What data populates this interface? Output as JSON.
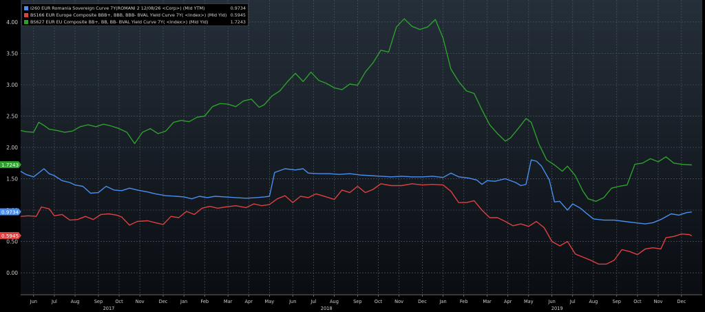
{
  "chart_data": {
    "type": "line",
    "title": "",
    "xlabel": "",
    "ylabel": "",
    "ylim": [
      -0.35,
      4.35
    ],
    "yticks": [
      "0.00",
      "0.50",
      "1.00",
      "1.50",
      "2.00",
      "2.50",
      "3.00",
      "3.50",
      "4.00"
    ],
    "xlim": [
      2017.37,
      2020.0
    ],
    "month_ticks": [
      {
        "label": "Jun",
        "x": 2017.42
      },
      {
        "label": "Jul",
        "x": 2017.5
      },
      {
        "label": "Aug",
        "x": 2017.58
      },
      {
        "label": "Sep",
        "x": 2017.67
      },
      {
        "label": "Oct",
        "x": 2017.75
      },
      {
        "label": "Nov",
        "x": 2017.83
      },
      {
        "label": "Dec",
        "x": 2017.92
      },
      {
        "label": "Jan",
        "x": 2018.0
      },
      {
        "label": "Feb",
        "x": 2018.08
      },
      {
        "label": "Mar",
        "x": 2018.17
      },
      {
        "label": "Apr",
        "x": 2018.25
      },
      {
        "label": "May",
        "x": 2018.33
      },
      {
        "label": "Jun",
        "x": 2018.42
      },
      {
        "label": "Jul",
        "x": 2018.5
      },
      {
        "label": "Aug",
        "x": 2018.58
      },
      {
        "label": "Sep",
        "x": 2018.67
      },
      {
        "label": "Oct",
        "x": 2018.75
      },
      {
        "label": "Nov",
        "x": 2018.83
      },
      {
        "label": "Dec",
        "x": 2018.92
      },
      {
        "label": "Jan",
        "x": 2019.0
      },
      {
        "label": "Feb",
        "x": 2019.08
      },
      {
        "label": "Mar",
        "x": 2019.17
      },
      {
        "label": "Apr",
        "x": 2019.25
      },
      {
        "label": "May",
        "x": 2019.33
      },
      {
        "label": "Jun",
        "x": 2019.42
      },
      {
        "label": "Jul",
        "x": 2019.5
      },
      {
        "label": "Aug",
        "x": 2019.58
      },
      {
        "label": "Sep",
        "x": 2019.67
      },
      {
        "label": "Oct",
        "x": 2019.75
      },
      {
        "label": "Nov",
        "x": 2019.83
      },
      {
        "label": "Dec",
        "x": 2019.92
      }
    ],
    "year_ticks": [
      {
        "label": "2017",
        "x": 2017.71
      },
      {
        "label": "2018",
        "x": 2018.55
      },
      {
        "label": "2019",
        "x": 2019.44
      }
    ],
    "grid": true,
    "legend_position": "top-left",
    "series": [
      {
        "name": "I260 EUR Romania Sovereign Curve 7Y(ROMANI 2 12/08/26 <Corp>) (Mid YTM)",
        "last": "0.9734",
        "color": "#4a8ff0",
        "points": [
          [
            2017.37,
            1.62
          ],
          [
            2017.39,
            1.57
          ],
          [
            2017.42,
            1.53
          ],
          [
            2017.46,
            1.66
          ],
          [
            2017.48,
            1.58
          ],
          [
            2017.5,
            1.55
          ],
          [
            2017.53,
            1.47
          ],
          [
            2017.56,
            1.44
          ],
          [
            2017.58,
            1.4
          ],
          [
            2017.61,
            1.38
          ],
          [
            2017.64,
            1.27
          ],
          [
            2017.67,
            1.28
          ],
          [
            2017.7,
            1.38
          ],
          [
            2017.73,
            1.32
          ],
          [
            2017.76,
            1.31
          ],
          [
            2017.79,
            1.35
          ],
          [
            2017.82,
            1.32
          ],
          [
            2017.86,
            1.29
          ],
          [
            2017.89,
            1.26
          ],
          [
            2017.93,
            1.23
          ],
          [
            2017.97,
            1.22
          ],
          [
            2018.0,
            1.21
          ],
          [
            2018.03,
            1.18
          ],
          [
            2018.06,
            1.22
          ],
          [
            2018.09,
            1.2
          ],
          [
            2018.12,
            1.22
          ],
          [
            2018.16,
            1.21
          ],
          [
            2018.2,
            1.2
          ],
          [
            2018.24,
            1.19
          ],
          [
            2018.28,
            1.2
          ],
          [
            2018.31,
            1.21
          ],
          [
            2018.33,
            1.22
          ],
          [
            2018.35,
            1.6
          ],
          [
            2018.39,
            1.66
          ],
          [
            2018.43,
            1.64
          ],
          [
            2018.46,
            1.66
          ],
          [
            2018.48,
            1.59
          ],
          [
            2018.52,
            1.58
          ],
          [
            2018.56,
            1.58
          ],
          [
            2018.6,
            1.57
          ],
          [
            2018.64,
            1.58
          ],
          [
            2018.68,
            1.56
          ],
          [
            2018.72,
            1.55
          ],
          [
            2018.76,
            1.54
          ],
          [
            2018.8,
            1.53
          ],
          [
            2018.84,
            1.54
          ],
          [
            2018.88,
            1.53
          ],
          [
            2018.92,
            1.53
          ],
          [
            2018.96,
            1.54
          ],
          [
            2019.0,
            1.52
          ],
          [
            2019.03,
            1.59
          ],
          [
            2019.06,
            1.53
          ],
          [
            2019.1,
            1.51
          ],
          [
            2019.13,
            1.48
          ],
          [
            2019.15,
            1.41
          ],
          [
            2019.17,
            1.47
          ],
          [
            2019.2,
            1.46
          ],
          [
            2019.24,
            1.5
          ],
          [
            2019.28,
            1.44
          ],
          [
            2019.3,
            1.39
          ],
          [
            2019.32,
            1.41
          ],
          [
            2019.34,
            1.8
          ],
          [
            2019.36,
            1.78
          ],
          [
            2019.38,
            1.7
          ],
          [
            2019.41,
            1.48
          ],
          [
            2019.43,
            1.13
          ],
          [
            2019.45,
            1.14
          ],
          [
            2019.48,
            1.0
          ],
          [
            2019.5,
            1.1
          ],
          [
            2019.53,
            1.03
          ],
          [
            2019.55,
            0.96
          ],
          [
            2019.58,
            0.86
          ],
          [
            2019.62,
            0.84
          ],
          [
            2019.66,
            0.84
          ],
          [
            2019.7,
            0.82
          ],
          [
            2019.74,
            0.8
          ],
          [
            2019.78,
            0.78
          ],
          [
            2019.81,
            0.8
          ],
          [
            2019.84,
            0.85
          ],
          [
            2019.88,
            0.94
          ],
          [
            2019.91,
            0.92
          ],
          [
            2019.94,
            0.96
          ],
          [
            2019.96,
            0.97
          ]
        ]
      },
      {
        "name": "BS166 EUR Europe Composite BBB+, BBB, BBB- BVAL Yield Curve 7Y( <Index>) (Mid Yld)",
        "last": "0.5945",
        "color": "#e04040",
        "points": [
          [
            2017.37,
            0.9
          ],
          [
            2017.4,
            0.91
          ],
          [
            2017.43,
            0.9
          ],
          [
            2017.45,
            1.05
          ],
          [
            2017.48,
            1.02
          ],
          [
            2017.5,
            0.91
          ],
          [
            2017.53,
            0.93
          ],
          [
            2017.56,
            0.84
          ],
          [
            2017.59,
            0.85
          ],
          [
            2017.62,
            0.9
          ],
          [
            2017.65,
            0.85
          ],
          [
            2017.68,
            0.93
          ],
          [
            2017.71,
            0.94
          ],
          [
            2017.74,
            0.92
          ],
          [
            2017.76,
            0.89
          ],
          [
            2017.79,
            0.76
          ],
          [
            2017.82,
            0.82
          ],
          [
            2017.86,
            0.83
          ],
          [
            2017.89,
            0.8
          ],
          [
            2017.92,
            0.77
          ],
          [
            2017.95,
            0.9
          ],
          [
            2017.98,
            0.88
          ],
          [
            2018.01,
            0.98
          ],
          [
            2018.04,
            0.93
          ],
          [
            2018.07,
            1.03
          ],
          [
            2018.1,
            1.06
          ],
          [
            2018.13,
            1.03
          ],
          [
            2018.16,
            1.05
          ],
          [
            2018.2,
            1.07
          ],
          [
            2018.24,
            1.04
          ],
          [
            2018.27,
            1.1
          ],
          [
            2018.3,
            1.07
          ],
          [
            2018.33,
            1.09
          ],
          [
            2018.36,
            1.18
          ],
          [
            2018.39,
            1.23
          ],
          [
            2018.42,
            1.12
          ],
          [
            2018.45,
            1.22
          ],
          [
            2018.48,
            1.2
          ],
          [
            2018.51,
            1.26
          ],
          [
            2018.55,
            1.21
          ],
          [
            2018.58,
            1.17
          ],
          [
            2018.61,
            1.32
          ],
          [
            2018.64,
            1.28
          ],
          [
            2018.67,
            1.38
          ],
          [
            2018.7,
            1.28
          ],
          [
            2018.73,
            1.33
          ],
          [
            2018.76,
            1.42
          ],
          [
            2018.8,
            1.39
          ],
          [
            2018.84,
            1.39
          ],
          [
            2018.88,
            1.42
          ],
          [
            2018.92,
            1.4
          ],
          [
            2018.96,
            1.41
          ],
          [
            2019.0,
            1.4
          ],
          [
            2019.03,
            1.3
          ],
          [
            2019.06,
            1.12
          ],
          [
            2019.09,
            1.12
          ],
          [
            2019.12,
            1.15
          ],
          [
            2019.15,
            1.0
          ],
          [
            2019.18,
            0.88
          ],
          [
            2019.21,
            0.88
          ],
          [
            2019.24,
            0.82
          ],
          [
            2019.27,
            0.75
          ],
          [
            2019.3,
            0.78
          ],
          [
            2019.33,
            0.74
          ],
          [
            2019.36,
            0.82
          ],
          [
            2019.39,
            0.72
          ],
          [
            2019.42,
            0.5
          ],
          [
            2019.45,
            0.43
          ],
          [
            2019.48,
            0.5
          ],
          [
            2019.51,
            0.3
          ],
          [
            2019.54,
            0.25
          ],
          [
            2019.57,
            0.2
          ],
          [
            2019.6,
            0.14
          ],
          [
            2019.63,
            0.14
          ],
          [
            2019.66,
            0.2
          ],
          [
            2019.69,
            0.37
          ],
          [
            2019.72,
            0.34
          ],
          [
            2019.75,
            0.29
          ],
          [
            2019.78,
            0.38
          ],
          [
            2019.81,
            0.4
          ],
          [
            2019.84,
            0.38
          ],
          [
            2019.86,
            0.56
          ],
          [
            2019.89,
            0.58
          ],
          [
            2019.92,
            0.62
          ],
          [
            2019.95,
            0.61
          ],
          [
            2019.96,
            0.59
          ]
        ]
      },
      {
        "name": "BS627 EUR EU Composite BB+, BB, BB- BVAL Yield Curve 7Y( <Index>) (Mid Yld)",
        "last": "1.7243",
        "color": "#2ea02e",
        "points": [
          [
            2017.37,
            2.27
          ],
          [
            2017.39,
            2.25
          ],
          [
            2017.42,
            2.24
          ],
          [
            2017.44,
            2.4
          ],
          [
            2017.46,
            2.35
          ],
          [
            2017.48,
            2.29
          ],
          [
            2017.51,
            2.27
          ],
          [
            2017.54,
            2.24
          ],
          [
            2017.57,
            2.26
          ],
          [
            2017.6,
            2.33
          ],
          [
            2017.63,
            2.36
          ],
          [
            2017.66,
            2.33
          ],
          [
            2017.69,
            2.37
          ],
          [
            2017.72,
            2.34
          ],
          [
            2017.75,
            2.3
          ],
          [
            2017.78,
            2.24
          ],
          [
            2017.81,
            2.06
          ],
          [
            2017.84,
            2.24
          ],
          [
            2017.87,
            2.3
          ],
          [
            2017.9,
            2.22
          ],
          [
            2017.93,
            2.26
          ],
          [
            2017.96,
            2.4
          ],
          [
            2017.99,
            2.43
          ],
          [
            2018.02,
            2.41
          ],
          [
            2018.05,
            2.48
          ],
          [
            2018.08,
            2.5
          ],
          [
            2018.11,
            2.65
          ],
          [
            2018.14,
            2.7
          ],
          [
            2018.17,
            2.69
          ],
          [
            2018.2,
            2.65
          ],
          [
            2018.23,
            2.74
          ],
          [
            2018.26,
            2.77
          ],
          [
            2018.29,
            2.64
          ],
          [
            2018.31,
            2.68
          ],
          [
            2018.34,
            2.82
          ],
          [
            2018.37,
            2.9
          ],
          [
            2018.4,
            3.05
          ],
          [
            2018.43,
            3.18
          ],
          [
            2018.46,
            3.05
          ],
          [
            2018.49,
            3.2
          ],
          [
            2018.52,
            3.07
          ],
          [
            2018.55,
            3.02
          ],
          [
            2018.58,
            2.95
          ],
          [
            2018.61,
            2.92
          ],
          [
            2018.64,
            3.01
          ],
          [
            2018.67,
            2.99
          ],
          [
            2018.7,
            3.2
          ],
          [
            2018.73,
            3.35
          ],
          [
            2018.76,
            3.55
          ],
          [
            2018.79,
            3.52
          ],
          [
            2018.82,
            3.92
          ],
          [
            2018.85,
            4.05
          ],
          [
            2018.88,
            3.93
          ],
          [
            2018.91,
            3.88
          ],
          [
            2018.94,
            3.92
          ],
          [
            2018.97,
            4.04
          ],
          [
            2019.0,
            3.74
          ],
          [
            2019.03,
            3.25
          ],
          [
            2019.06,
            3.05
          ],
          [
            2019.09,
            2.9
          ],
          [
            2019.12,
            2.86
          ],
          [
            2019.15,
            2.6
          ],
          [
            2019.18,
            2.36
          ],
          [
            2019.21,
            2.22
          ],
          [
            2019.24,
            2.1
          ],
          [
            2019.26,
            2.15
          ],
          [
            2019.29,
            2.3
          ],
          [
            2019.32,
            2.46
          ],
          [
            2019.34,
            2.4
          ],
          [
            2019.37,
            2.05
          ],
          [
            2019.4,
            1.8
          ],
          [
            2019.43,
            1.72
          ],
          [
            2019.46,
            1.62
          ],
          [
            2019.48,
            1.7
          ],
          [
            2019.51,
            1.55
          ],
          [
            2019.54,
            1.3
          ],
          [
            2019.56,
            1.18
          ],
          [
            2019.59,
            1.14
          ],
          [
            2019.62,
            1.2
          ],
          [
            2019.65,
            1.35
          ],
          [
            2019.68,
            1.38
          ],
          [
            2019.71,
            1.4
          ],
          [
            2019.74,
            1.73
          ],
          [
            2019.77,
            1.75
          ],
          [
            2019.8,
            1.82
          ],
          [
            2019.83,
            1.77
          ],
          [
            2019.86,
            1.85
          ],
          [
            2019.89,
            1.75
          ],
          [
            2019.92,
            1.73
          ],
          [
            2019.96,
            1.72
          ]
        ]
      }
    ]
  }
}
